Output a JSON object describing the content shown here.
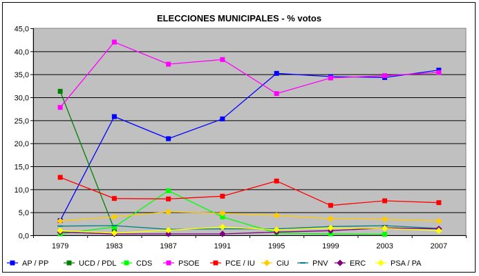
{
  "chart_data": {
    "type": "line",
    "title": "ELECCIONES MUNICIPALES - % votos",
    "xlabel": "",
    "ylabel": "",
    "categories": [
      "1979",
      "1983",
      "1987",
      "1991",
      "1995",
      "1999",
      "2003",
      "2007"
    ],
    "ylim": [
      0,
      45
    ],
    "yticks": [
      "0,0",
      "5,0",
      "10,0",
      "15,0",
      "20,0",
      "25,0",
      "30,0",
      "35,0",
      "40,0",
      "45,0"
    ],
    "grid": "horizontal",
    "legend_position": "bottom",
    "plot_background": "#c0c0c0",
    "series": [
      {
        "name": "AP / PP",
        "color": "#0000ff",
        "marker": "square",
        "values": [
          3.2,
          25.8,
          21.0,
          25.3,
          35.2,
          34.5,
          34.3,
          35.9
        ]
      },
      {
        "name": "UCD / PDL",
        "color": "#008000",
        "marker": "square",
        "values": [
          31.3,
          1.3,
          null,
          null,
          null,
          null,
          null,
          null
        ]
      },
      {
        "name": "CDS",
        "color": "#00ff00",
        "marker": "square",
        "values": [
          0.3,
          1.8,
          9.7,
          4.0,
          0.5,
          0.3,
          0.2,
          null
        ]
      },
      {
        "name": "PSOE",
        "color": "#ff00ff",
        "marker": "square",
        "values": [
          27.8,
          42.0,
          37.2,
          38.2,
          30.8,
          34.2,
          34.7,
          35.4
        ]
      },
      {
        "name": "PCE / IU",
        "color": "#ff0000",
        "marker": "square",
        "values": [
          12.6,
          8.0,
          7.9,
          8.5,
          11.8,
          6.5,
          7.5,
          7.1
        ]
      },
      {
        "name": "CiU",
        "color": "#ffcc00",
        "marker": "diamond",
        "values": [
          3.1,
          4.0,
          5.1,
          4.8,
          4.3,
          3.6,
          3.5,
          3.1
        ]
      },
      {
        "name": "PNV",
        "color": "#008080",
        "marker": "dash",
        "values": [
          2.0,
          2.1,
          1.3,
          1.4,
          1.4,
          1.9,
          2.1,
          1.5
        ]
      },
      {
        "name": "ERC",
        "color": "#800080",
        "marker": "diamond",
        "values": [
          0.7,
          0.3,
          0.3,
          0.3,
          0.7,
          1.0,
          1.6,
          1.4
        ]
      },
      {
        "name": "PSA / PA",
        "color": "#ffff00",
        "marker": "diamond",
        "values": [
          1.0,
          0.5,
          1.1,
          1.8,
          1.2,
          1.6,
          1.5,
          1.0
        ]
      }
    ]
  }
}
